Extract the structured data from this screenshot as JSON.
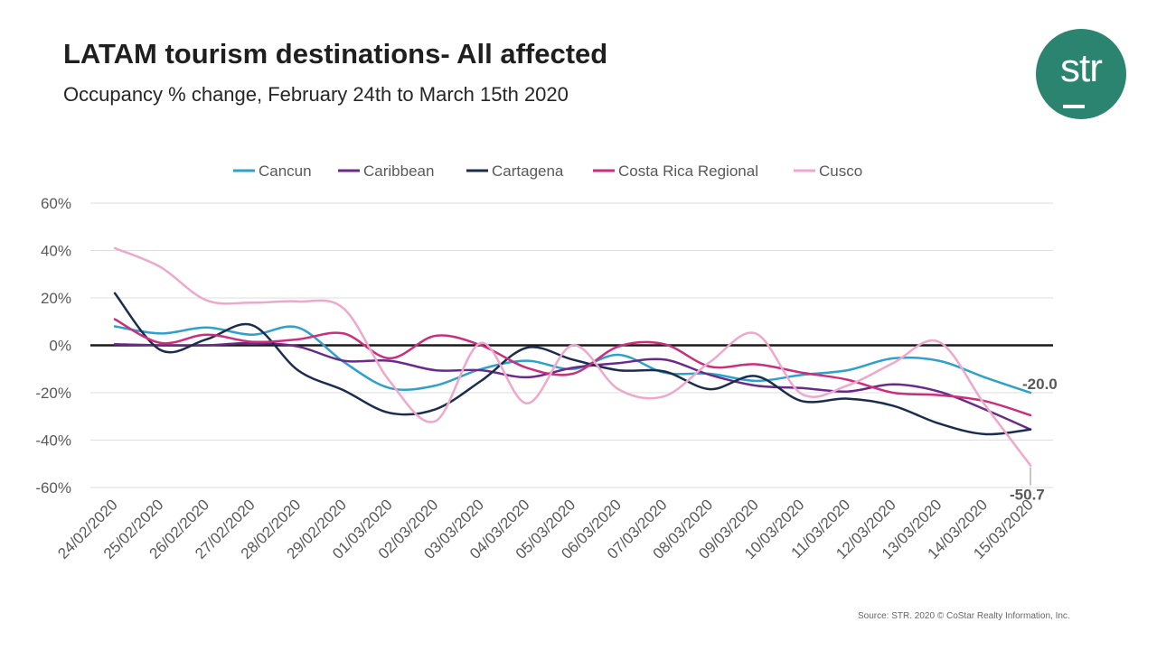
{
  "header": {
    "title": "LATAM tourism destinations- All affected",
    "subtitle": "Occupancy % change, February 24th to March 15th  2020"
  },
  "logo": {
    "text": "str",
    "color": "#2b8470"
  },
  "footer": {
    "source": "Source: STR. 2020 © CoStar Realty Information, Inc."
  },
  "chart_data": {
    "type": "line",
    "title": "Occupancy % change, February 24th to March 15th  2020",
    "xlabel": "",
    "ylabel": "",
    "ylim": [
      -60,
      60
    ],
    "y_ticks": [
      60,
      40,
      20,
      0,
      -20,
      -40,
      -60
    ],
    "y_tick_labels": [
      "60%",
      "40%",
      "20%",
      "0%",
      "-20%",
      "-40%",
      "-60%"
    ],
    "grid": true,
    "legend_position": "top",
    "categories": [
      "24/02/2020",
      "25/02/2020",
      "26/02/2020",
      "27/02/2020",
      "28/02/2020",
      "29/02/2020",
      "01/03/2020",
      "02/03/2020",
      "03/03/2020",
      "04/03/2020",
      "05/03/2020",
      "06/03/2020",
      "07/03/2020",
      "08/03/2020",
      "09/03/2020",
      "10/03/2020",
      "11/03/2020",
      "12/03/2020",
      "13/03/2020",
      "14/03/2020",
      "15/03/2020"
    ],
    "series": [
      {
        "name": "Cancun",
        "color": "#2ea0cc",
        "values": [
          8,
          5,
          7.5,
          4.5,
          7.5,
          -7,
          -18,
          -17,
          -10,
          -6.5,
          -10,
          -4,
          -11.5,
          -12,
          -15,
          -12.5,
          -10.5,
          -5.5,
          -6.5,
          -13.5,
          -20.0
        ]
      },
      {
        "name": "Caribbean",
        "color": "#6b2a8a",
        "values": [
          0.5,
          0,
          0,
          1,
          -0.5,
          -6.5,
          -6.5,
          -10.5,
          -10.5,
          -13.5,
          -9.5,
          -7.5,
          -6,
          -12.5,
          -17,
          -18,
          -19.5,
          -16.5,
          -19.5,
          -27,
          -35.5
        ]
      },
      {
        "name": "Cartagena",
        "color": "#1c2c4e",
        "values": [
          22,
          -2,
          2.5,
          8.5,
          -10.5,
          -19,
          -28.5,
          -27,
          -15,
          -1,
          -6,
          -10.5,
          -11,
          -18.5,
          -13,
          -23.5,
          -22.5,
          -25.5,
          -33,
          -37.5,
          -35.5
        ]
      },
      {
        "name": "Costa Rica Regional",
        "color": "#cc2e7c",
        "values": [
          11,
          1,
          4.5,
          1.5,
          2.5,
          5,
          -5.5,
          4,
          0,
          -9.5,
          -12,
          -0.5,
          0.5,
          -9,
          -8,
          -11.5,
          -14.5,
          -20,
          -21,
          -23.5,
          -29.5
        ]
      },
      {
        "name": "Cusco",
        "color": "#eea8cc",
        "values": [
          41,
          33,
          19,
          18,
          18.5,
          15.5,
          -15,
          -32,
          1,
          -24.5,
          0,
          -18.5,
          -21.5,
          -7,
          5,
          -20.5,
          -17,
          -7.5,
          1.5,
          -25,
          -50.7
        ]
      }
    ],
    "annotations": [
      {
        "series": "Cancun",
        "category": "15/03/2020",
        "text": "-20.0"
      },
      {
        "series": "Cusco",
        "category": "15/03/2020",
        "text": "-50.7"
      }
    ]
  }
}
